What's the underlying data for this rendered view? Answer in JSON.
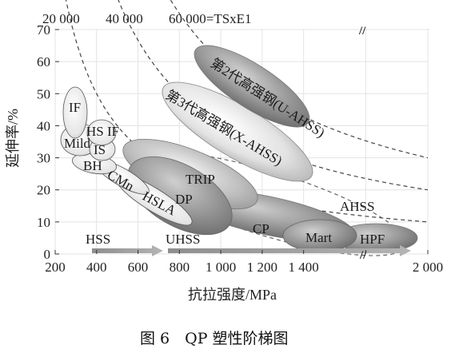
{
  "chart_data": {
    "type": "scatter",
    "xlabel": "抗拉强度/MPa",
    "ylabel": "延伸率/%",
    "xlim": [
      200,
      2000
    ],
    "ylim": [
      0,
      70
    ],
    "x_ticks": [
      "200",
      "400",
      "600",
      "800",
      "1 000",
      "1 200",
      "1 400",
      "",
      "2 000"
    ],
    "y_ticks": [
      "0",
      "10",
      "20",
      "30",
      "40",
      "50",
      "60",
      "70"
    ],
    "grid": true,
    "top_labels": [
      "20 000",
      "40 000",
      "60 000=TSxE1"
    ],
    "break_mark": "//",
    "bottom_labels": [
      "HSS",
      "UHSS"
    ],
    "regions": [
      {
        "name": "IF",
        "x_range": [
          260,
          340
        ],
        "y_range": [
          38,
          56
        ]
      },
      {
        "name": "Mild",
        "x_range": [
          250,
          360
        ],
        "y_range": [
          33,
          43
        ]
      },
      {
        "name": "HS IF",
        "x_range": [
          340,
          460
        ],
        "y_range": [
          34,
          44
        ]
      },
      {
        "name": "IS",
        "x_range": [
          340,
          450
        ],
        "y_range": [
          30,
          38
        ]
      },
      {
        "name": "BH",
        "x_range": [
          300,
          460
        ],
        "y_range": [
          25,
          33
        ]
      },
      {
        "name": "CMn",
        "x_range": [
          380,
          620
        ],
        "y_range": [
          18,
          32
        ]
      },
      {
        "name": "HSLA",
        "x_range": [
          460,
          780
        ],
        "y_range": [
          9,
          26
        ]
      },
      {
        "name": "TRIP",
        "x_range": [
          560,
          1050
        ],
        "y_range": [
          18,
          33
        ]
      },
      {
        "name": "DP",
        "x_range": [
          520,
          1180
        ],
        "y_range": [
          7,
          30
        ]
      },
      {
        "name": "CP",
        "x_range": [
          800,
          1550
        ],
        "y_range": [
          5,
          15
        ]
      },
      {
        "name": "Mart",
        "x_range": [
          1200,
          1600
        ],
        "y_range": [
          2,
          11
        ]
      },
      {
        "name": "HPF",
        "x_range": [
          1350,
          1950
        ],
        "y_range": [
          0,
          9
        ]
      },
      {
        "name": "AHSS",
        "x_range": [
          500,
          1950
        ],
        "y_range": [
          0,
          33
        ]
      },
      {
        "name": "第2代高强钢(U-AHSS)",
        "x_range": [
          750,
          1300
        ],
        "y_range": [
          41,
          70
        ]
      },
      {
        "name": "第3代高强钢(X-AHSS)",
        "x_range": [
          700,
          1450
        ],
        "y_range": [
          23,
          58
        ]
      }
    ],
    "curves": [
      {
        "name": "20 000",
        "product": 20000
      },
      {
        "name": "40 000",
        "product": 40000
      },
      {
        "name": "60 000=TSxE1",
        "product": 60000
      }
    ]
  },
  "caption": "图 6　QP 塑性阶梯图"
}
